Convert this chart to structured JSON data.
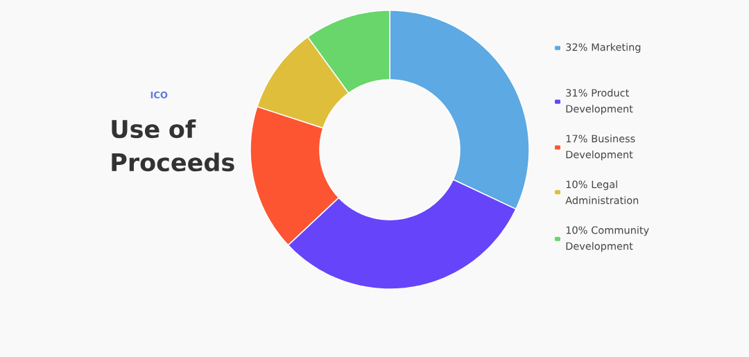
{
  "chart_data": {
    "type": "donut",
    "title": "Use of Proceeds",
    "subtitle": "ICO",
    "categories": [
      "32% Marketing",
      "31% Product Development",
      "17% Business Development",
      "10% Legal Administration",
      "10% Community Development"
    ],
    "values": [
      32,
      31,
      17,
      10,
      10
    ],
    "colors": [
      "#5ca9e3",
      "#6644fa",
      "#fd5532",
      "#dfbe3c",
      "#68d66a"
    ],
    "legend": "right"
  }
}
